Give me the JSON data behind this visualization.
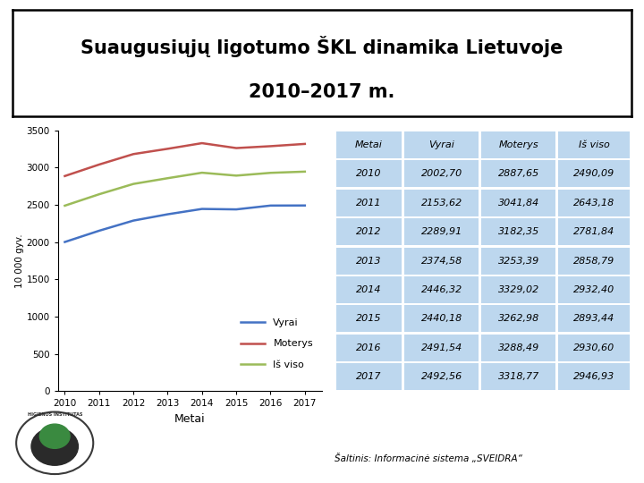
{
  "title_line1": "Suaugusiųjų ligotumo ŠKL dinamika Lietuvoje",
  "title_line2": "2010–2017 m.",
  "years": [
    2010,
    2011,
    2012,
    2013,
    2014,
    2015,
    2016,
    2017
  ],
  "vyrai": [
    2002.7,
    2153.62,
    2289.91,
    2374.58,
    2446.32,
    2440.18,
    2491.54,
    2492.56
  ],
  "moterys": [
    2887.65,
    3041.84,
    3182.35,
    3253.39,
    3329.02,
    3262.98,
    3288.49,
    3318.77
  ],
  "is_viso": [
    2490.09,
    2643.18,
    2781.84,
    2858.79,
    2932.4,
    2893.44,
    2930.6,
    2946.93
  ],
  "vyrai_color": "#4472C4",
  "moterys_color": "#C0504D",
  "is_viso_color": "#9BBB59",
  "table_header_bg": "#BDD7EE",
  "table_row_bg": "#BDD7EE",
  "table_header_cols": [
    "Metai",
    "Vyrai",
    "Moterys",
    "Iš viso"
  ],
  "ylabel": "10 000 gyv.",
  "xlabel": "Metai",
  "ylim": [
    0,
    3500
  ],
  "yticks": [
    0,
    500,
    1000,
    1500,
    2000,
    2500,
    3000,
    3500
  ],
  "source_text": "Šaltinis: Informacinė sistema „SVEIDRA“",
  "bg_color": "#FFFFFF",
  "legend_vyrai": "Vyrai",
  "legend_moterys": "Moterys",
  "legend_is_viso": "Iš viso"
}
